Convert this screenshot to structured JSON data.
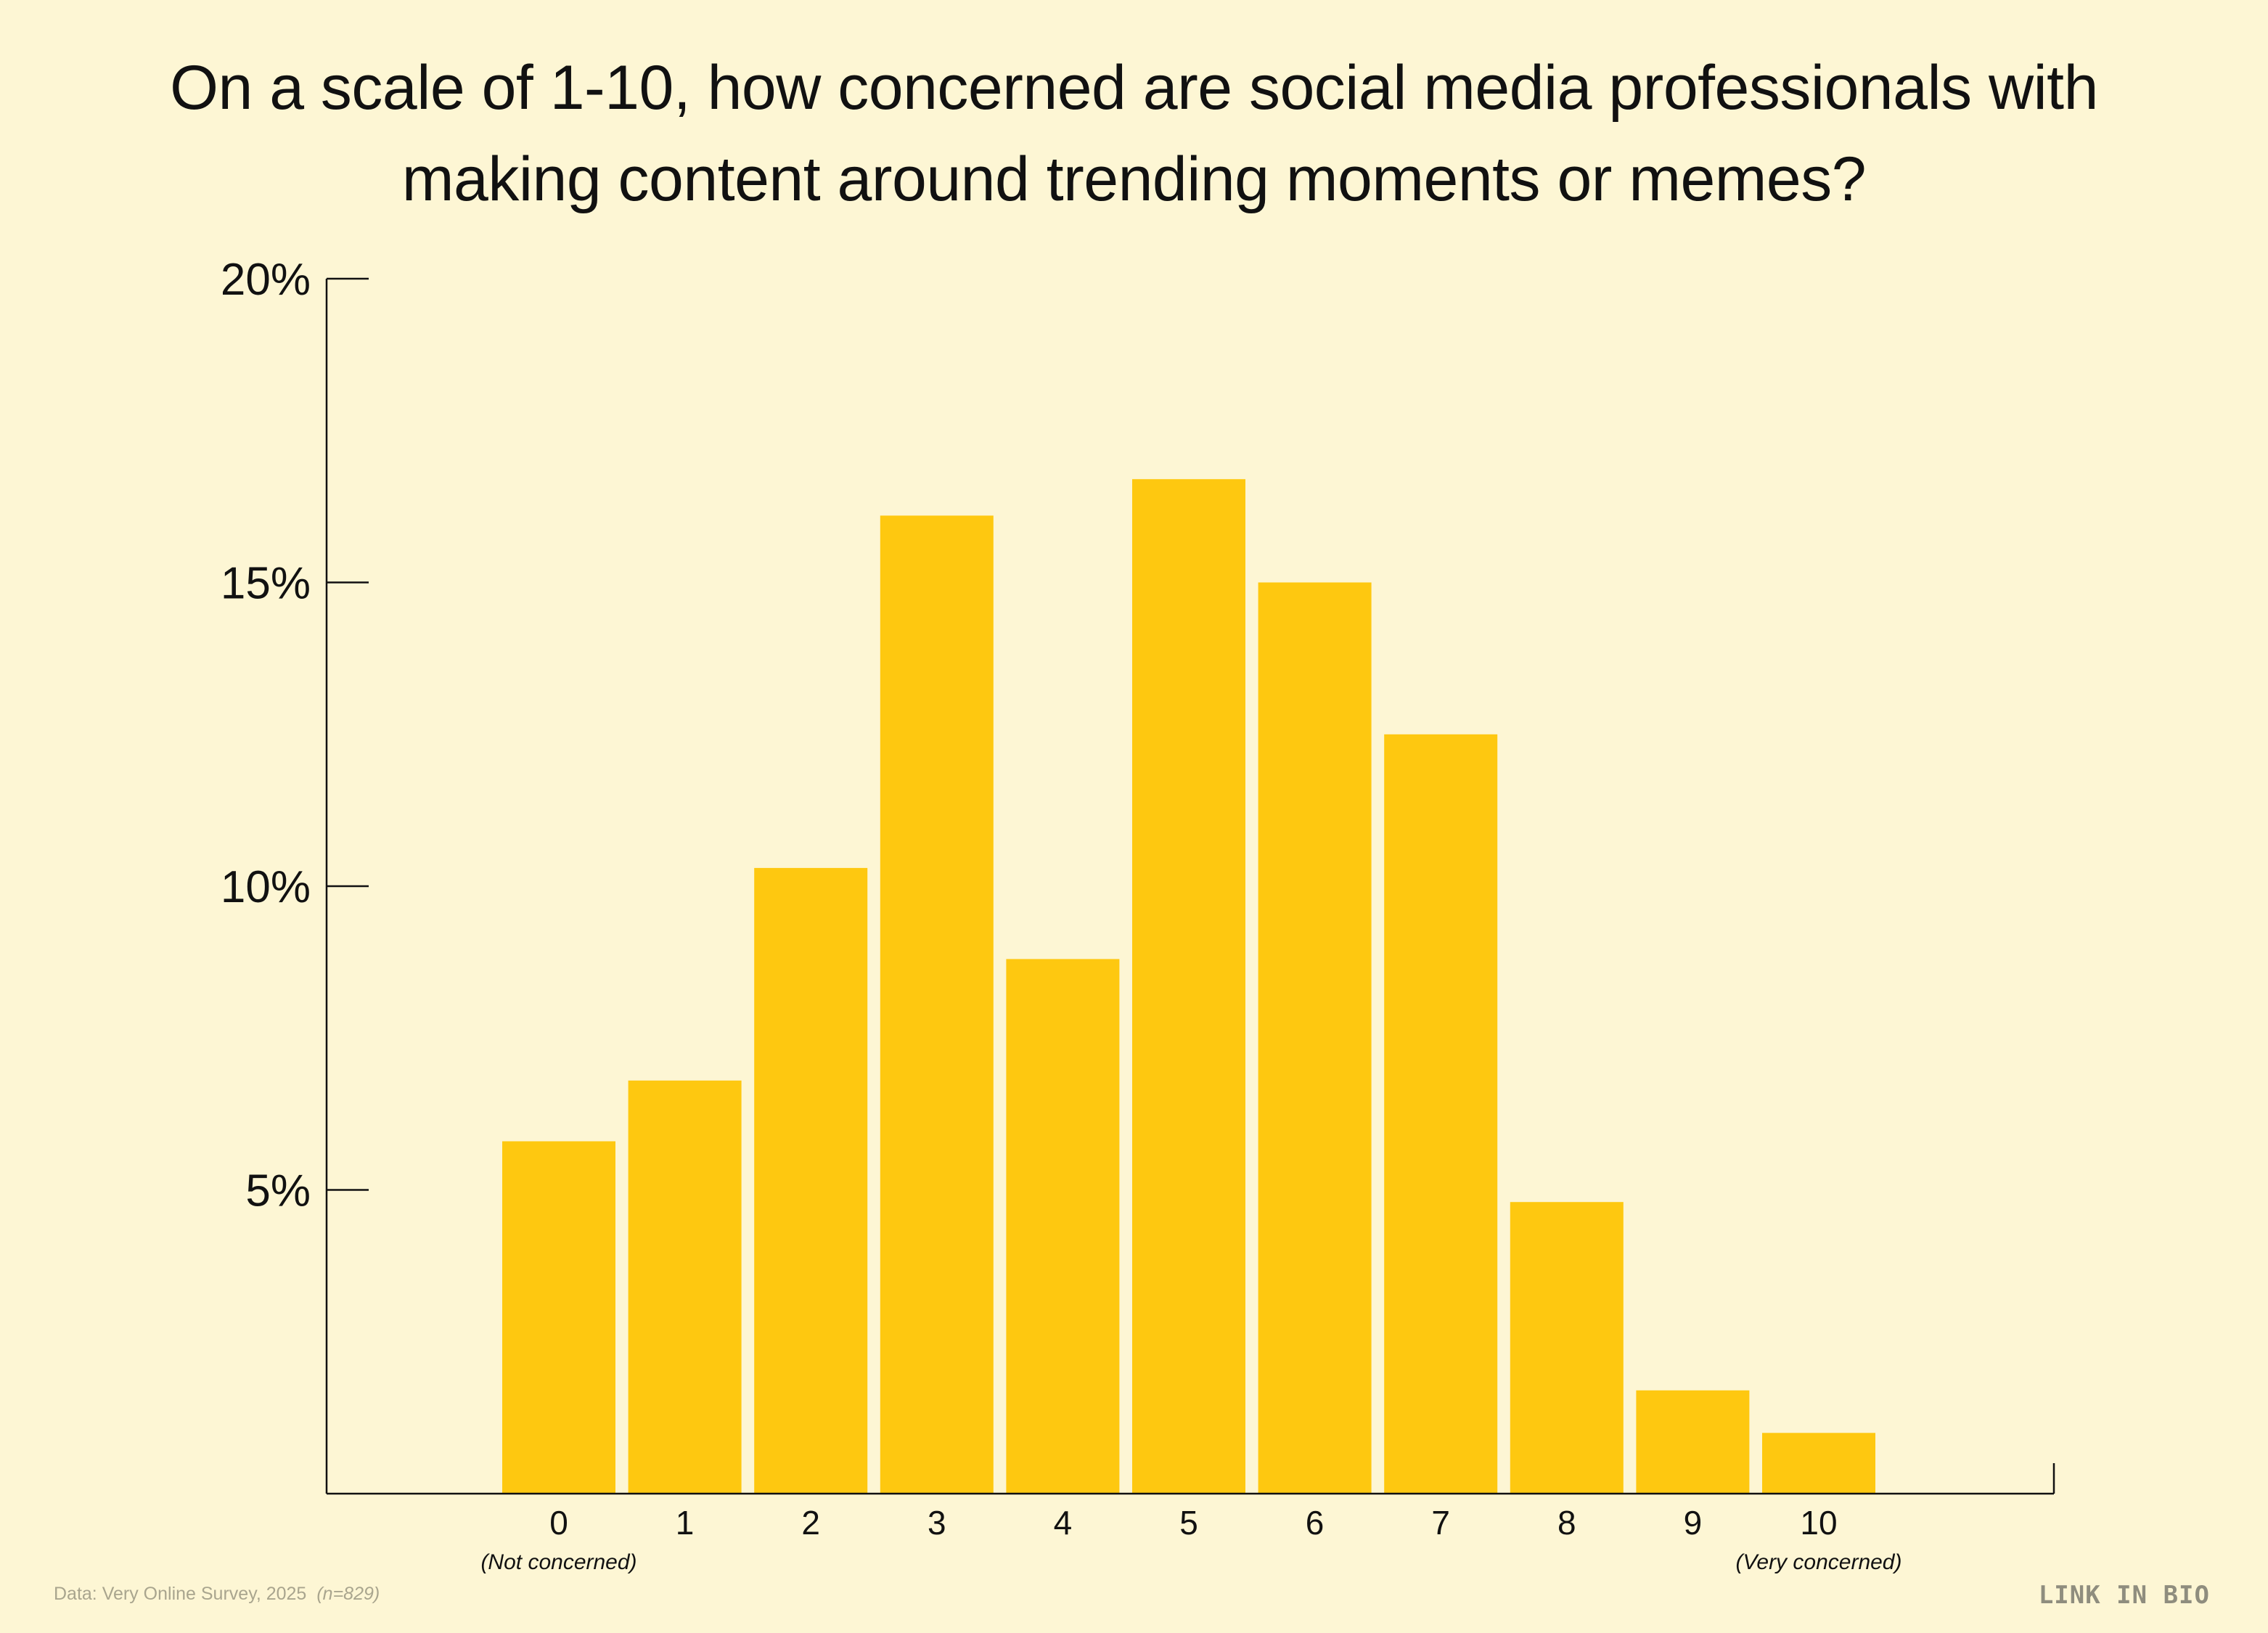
{
  "title_lines": [
    "On a scale of 1-10, how concerned are social media professionals with",
    "making content around trending moments or memes?"
  ],
  "footer": {
    "source": "Data: Very Online Survey, 2025",
    "sample": "(n=829)",
    "brand": "LINK IN BIO"
  },
  "colors": {
    "background": "#fdf6d4",
    "bar": "#fec810",
    "axis": "#111111"
  },
  "chart_data": {
    "type": "bar",
    "title": "On a scale of 1-10, how concerned are social media professionals with making content around trending moments or memes?",
    "categories": [
      "0",
      "1",
      "2",
      "3",
      "4",
      "5",
      "6",
      "7",
      "8",
      "9",
      "10"
    ],
    "values": [
      5.8,
      6.8,
      10.3,
      16.1,
      8.8,
      16.7,
      15.0,
      12.5,
      4.8,
      1.7,
      1.0
    ],
    "ylim": [
      0,
      20
    ],
    "yticks": [
      5,
      10,
      15,
      20
    ],
    "ytick_labels": [
      "5%",
      "10%",
      "15%",
      "20%"
    ],
    "category_notes": [
      {
        "category": "0",
        "text": "(Not concerned)"
      },
      {
        "category": "10",
        "text": "(Very concerned)"
      }
    ],
    "xlabel": "",
    "ylabel": "",
    "grid": false,
    "legend": "none"
  }
}
